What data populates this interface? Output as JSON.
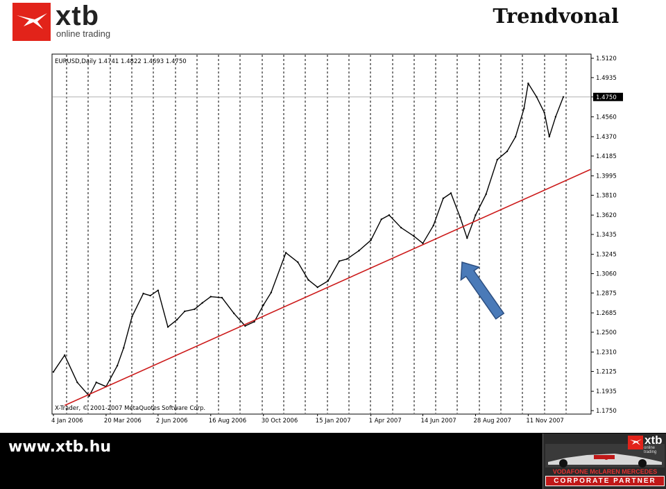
{
  "header": {
    "brand_name": "xtb",
    "brand_tagline": "online trading",
    "title": "Trendvonal"
  },
  "footer": {
    "url": "www.xtb.hu",
    "partner_brand": "xtb",
    "partner_brand_tagline": "online trading",
    "partner_line1": "VODAFONE McLAREN MERCEDES",
    "partner_line2": "CORPORATE PARTNER"
  },
  "colors": {
    "brand_red": "#e2231a",
    "trendline": "#cc1a1a",
    "arrow_fill": "#4a7ab8",
    "arrow_stroke": "#2c4e80",
    "price_line": "#000000"
  },
  "chart_data": {
    "type": "line",
    "title": "EURUSD,Daily  1.4741 1.4822 1.4693 1.4750",
    "copyright": "X-Trader, © 2001-2007 MetaQuotes Software Corp.",
    "current_price_label": "1.4750",
    "ylim": [
      1.175,
      1.512
    ],
    "y_ticks": [
      "1.5120",
      "1.4935",
      "1.4750",
      "1.4560",
      "1.4370",
      "1.4185",
      "1.3995",
      "1.3810",
      "1.3620",
      "1.3435",
      "1.3245",
      "1.3060",
      "1.2875",
      "1.2685",
      "1.2500",
      "1.2310",
      "1.2125",
      "1.1935",
      "1.1750"
    ],
    "x_tick_labels": [
      "4 Jan 2006",
      "20 Mar 2006",
      "2 Jun 2006",
      "16 Aug 2006",
      "30 Oct 2006",
      "15 Jan 2007",
      "1 Apr 2007",
      "14 Jun 2007",
      "28 Aug 2007",
      "11 Nov 2007"
    ],
    "x": [
      "4 Jan 2006",
      "20 Jan 2006",
      "7 Feb 2006",
      "24 Feb 2006",
      "6 Mar 2006",
      "20 Mar 2006",
      "5 Apr 2006",
      "14 Apr 2006",
      "26 Apr 2006",
      "12 May 2006",
      "22 May 2006",
      "2 Jun 2006",
      "16 Jun 2006",
      "29 Jun 2006",
      "10 Jul 2006",
      "24 Jul 2006",
      "4 Aug 2006",
      "16 Aug 2006",
      "1 Sep 2006",
      "18 Sep 2006",
      "4 Oct 2006",
      "17 Oct 2006",
      "30 Oct 2006",
      "10 Nov 2006",
      "1 Dec 2006",
      "18 Dec 2006",
      "2 Jan 2007",
      "15 Jan 2007",
      "30 Jan 2007",
      "15 Feb 2007",
      "26 Feb 2007",
      "15 Mar 2007",
      "1 Apr 2007",
      "16 Apr 2007",
      "27 Apr 2007",
      "14 May 2007",
      "1 Jun 2007",
      "14 Jun 2007",
      "29 Jun 2007",
      "13 Jul 2007",
      "24 Jul 2007",
      "6 Aug 2007",
      "16 Aug 2007",
      "28 Aug 2007",
      "12 Sep 2007",
      "28 Sep 2007",
      "12 Oct 2007",
      "24 Oct 2007",
      "5 Nov 2007",
      "11 Nov 2007",
      "23 Nov 2007",
      "4 Dec 2007",
      "11 Dec 2007",
      "20 Dec 2007",
      "31 Dec 2007"
    ],
    "series": [
      {
        "values": [
          1.212,
          1.228,
          1.202,
          1.189,
          1.202,
          1.198,
          1.218,
          1.235,
          1.265,
          1.287,
          1.285,
          1.29,
          1.255,
          1.262,
          1.27,
          1.272,
          1.278,
          1.284,
          1.283,
          1.268,
          1.256,
          1.26,
          1.276,
          1.288,
          1.326,
          1.317,
          1.3,
          1.293,
          1.299,
          1.318,
          1.32,
          1.328,
          1.338,
          1.358,
          1.362,
          1.35,
          1.342,
          1.335,
          1.352,
          1.378,
          1.383,
          1.36,
          1.34,
          1.362,
          1.382,
          1.415,
          1.423,
          1.437,
          1.464,
          1.488,
          1.475,
          1.46,
          1.437,
          1.456,
          1.475
        ]
      }
    ],
    "annotations": [
      {
        "type": "trendline",
        "x": [
          "20 Jan 2006",
          "31 Dec 2007"
        ],
        "y": [
          1.18,
          1.394
        ]
      },
      {
        "type": "arrow",
        "text": ""
      }
    ],
    "grid": "vertical dotted"
  }
}
